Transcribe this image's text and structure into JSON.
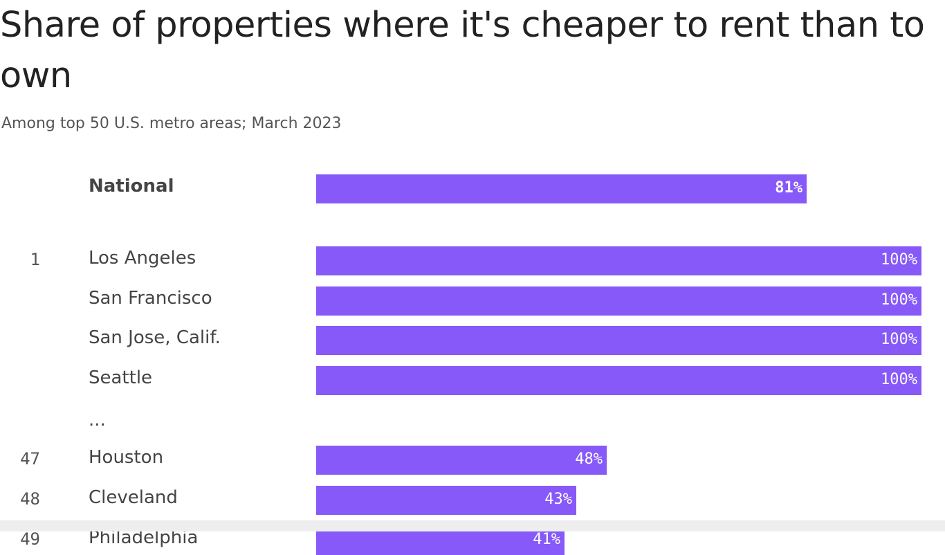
{
  "chart_data": {
    "type": "bar",
    "orientation": "horizontal",
    "title": "Share of properties where it's cheaper to rent than to own",
    "subtitle": "Among top 50 U.S. metro areas; March 2023",
    "bar_color": "#8759f9",
    "value_suffix": "%",
    "xlim": [
      0,
      100
    ],
    "ellipsis": "...",
    "national": {
      "label": "National",
      "value": 81
    },
    "rows": [
      {
        "rank": "1",
        "label": "Los Angeles",
        "value": 100
      },
      {
        "rank": "",
        "label": "San Francisco",
        "value": 100
      },
      {
        "rank": "",
        "label": "San Jose, Calif.",
        "value": 100
      },
      {
        "rank": "",
        "label": "Seattle",
        "value": 100
      },
      {
        "rank": "47",
        "label": "Houston",
        "value": 48
      },
      {
        "rank": "48",
        "label": "Cleveland",
        "value": 43
      },
      {
        "rank": "49",
        "label": "Philadelphia",
        "value": 41
      }
    ]
  }
}
